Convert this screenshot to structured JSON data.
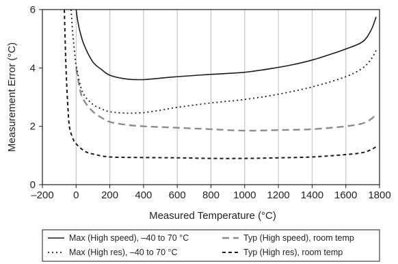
{
  "chart_data": {
    "type": "line",
    "title": "",
    "xlabel": "Measured Temperature (°C)",
    "ylabel": "Measurement Error (°C)",
    "xlim": [
      -200,
      1800
    ],
    "ylim": [
      0,
      6
    ],
    "x_ticks": [
      -200,
      0,
      200,
      400,
      600,
      800,
      1000,
      1200,
      1400,
      1600,
      1800
    ],
    "y_ticks": [
      0,
      2,
      4,
      6
    ],
    "x_tick_labels": [
      "–200",
      "0",
      "200",
      "400",
      "600",
      "800",
      "1000",
      "1200",
      "1400",
      "1600",
      "1800"
    ],
    "y_tick_labels": [
      "0",
      "2",
      "4",
      "6"
    ],
    "grid": "vertical",
    "legend_position": "bottom",
    "series": [
      {
        "name": "Max (High speed), –40 to 70 °C",
        "style": "solid",
        "color": "#1a1a1a",
        "points": [
          [
            0,
            6.0
          ],
          [
            10,
            5.6
          ],
          [
            25,
            5.2
          ],
          [
            50,
            4.75
          ],
          [
            100,
            4.2
          ],
          [
            150,
            3.95
          ],
          [
            200,
            3.75
          ],
          [
            300,
            3.62
          ],
          [
            400,
            3.6
          ],
          [
            500,
            3.65
          ],
          [
            600,
            3.7
          ],
          [
            800,
            3.78
          ],
          [
            1000,
            3.85
          ],
          [
            1200,
            4.02
          ],
          [
            1300,
            4.13
          ],
          [
            1400,
            4.27
          ],
          [
            1500,
            4.45
          ],
          [
            1600,
            4.65
          ],
          [
            1700,
            4.9
          ],
          [
            1750,
            5.3
          ],
          [
            1780,
            5.75
          ]
        ]
      },
      {
        "name": "Typ (High speed), room temp",
        "style": "dashed-gray",
        "color": "#8c8c8c",
        "points": [
          [
            0,
            4.0
          ],
          [
            25,
            3.2
          ],
          [
            50,
            2.85
          ],
          [
            100,
            2.5
          ],
          [
            150,
            2.3
          ],
          [
            200,
            2.15
          ],
          [
            300,
            2.05
          ],
          [
            400,
            2.0
          ],
          [
            600,
            1.95
          ],
          [
            800,
            1.9
          ],
          [
            1000,
            1.85
          ],
          [
            1200,
            1.87
          ],
          [
            1400,
            1.9
          ],
          [
            1600,
            2.0
          ],
          [
            1700,
            2.1
          ],
          [
            1750,
            2.25
          ],
          [
            1780,
            2.42
          ]
        ]
      },
      {
        "name": "Max (High res), –40 to 70 °C",
        "style": "dotted",
        "color": "#1a1a1a",
        "points": [
          [
            -30,
            6.0
          ],
          [
            -20,
            5.2
          ],
          [
            -5,
            4.3
          ],
          [
            0,
            4.1
          ],
          [
            25,
            3.4
          ],
          [
            50,
            3.05
          ],
          [
            100,
            2.75
          ],
          [
            150,
            2.6
          ],
          [
            200,
            2.5
          ],
          [
            300,
            2.45
          ],
          [
            400,
            2.47
          ],
          [
            500,
            2.55
          ],
          [
            600,
            2.65
          ],
          [
            800,
            2.8
          ],
          [
            1000,
            2.92
          ],
          [
            1200,
            3.1
          ],
          [
            1400,
            3.35
          ],
          [
            1600,
            3.7
          ],
          [
            1700,
            4.0
          ],
          [
            1750,
            4.3
          ],
          [
            1780,
            4.6
          ]
        ]
      },
      {
        "name": "Typ (High res), room temp",
        "style": "short-dashed",
        "color": "#1a1a1a",
        "points": [
          [
            -70,
            6.0
          ],
          [
            -60,
            4.0
          ],
          [
            -50,
            2.8
          ],
          [
            -40,
            2.0
          ],
          [
            -20,
            1.6
          ],
          [
            0,
            1.4
          ],
          [
            50,
            1.15
          ],
          [
            100,
            1.05
          ],
          [
            200,
            0.95
          ],
          [
            400,
            0.93
          ],
          [
            600,
            0.92
          ],
          [
            800,
            0.9
          ],
          [
            1000,
            0.9
          ],
          [
            1200,
            0.92
          ],
          [
            1400,
            0.95
          ],
          [
            1600,
            1.03
          ],
          [
            1700,
            1.1
          ],
          [
            1750,
            1.2
          ],
          [
            1780,
            1.3
          ]
        ]
      }
    ]
  }
}
